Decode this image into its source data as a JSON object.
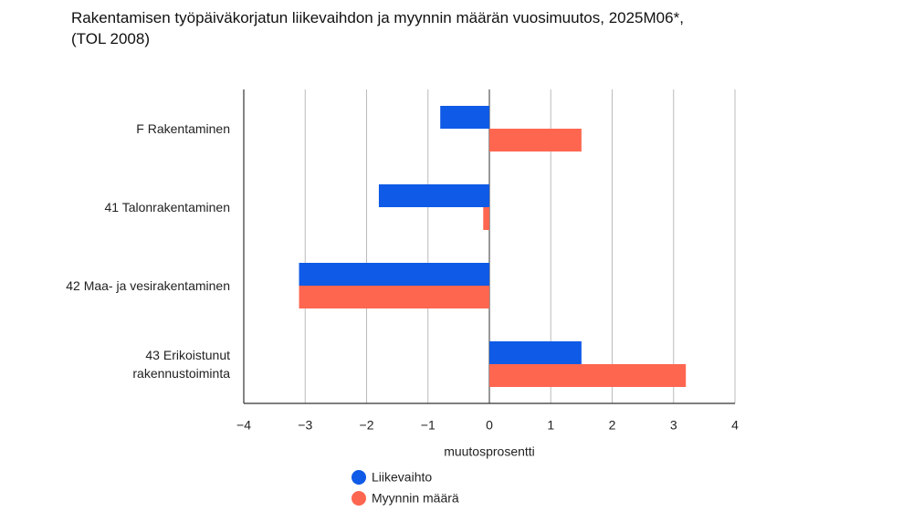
{
  "chart_data": {
    "type": "hbar",
    "title": [
      "Rakentamisen työpäiväkorjatun liikevaihdon ja myynnin määrän vuosimuutos, 2025M06*,",
      "(TOL 2008)"
    ],
    "categories": [
      "F Rakentaminen",
      "41 Talonrakentaminen",
      "42 Maa- ja vesirakentaminen",
      "43 Erikoistunut rakennustoiminta"
    ],
    "series": [
      {
        "name": "Liikevaihto",
        "color": "#0f5ae6",
        "values": [
          -0.8,
          -1.8,
          -3.1,
          1.5
        ]
      },
      {
        "name": "Myynnin määrä",
        "color": "#ff6650",
        "values": [
          1.5,
          -0.1,
          -3.1,
          3.2
        ]
      }
    ],
    "xlabel": "muutosprosentti",
    "xlim": [
      -4,
      4
    ],
    "xticks": [
      {
        "value": -4,
        "label": "−4"
      },
      {
        "value": -3,
        "label": "−3"
      },
      {
        "value": -2,
        "label": "−2"
      },
      {
        "value": -1,
        "label": "−1"
      },
      0,
      1,
      2,
      3,
      4
    ],
    "grid": true
  }
}
